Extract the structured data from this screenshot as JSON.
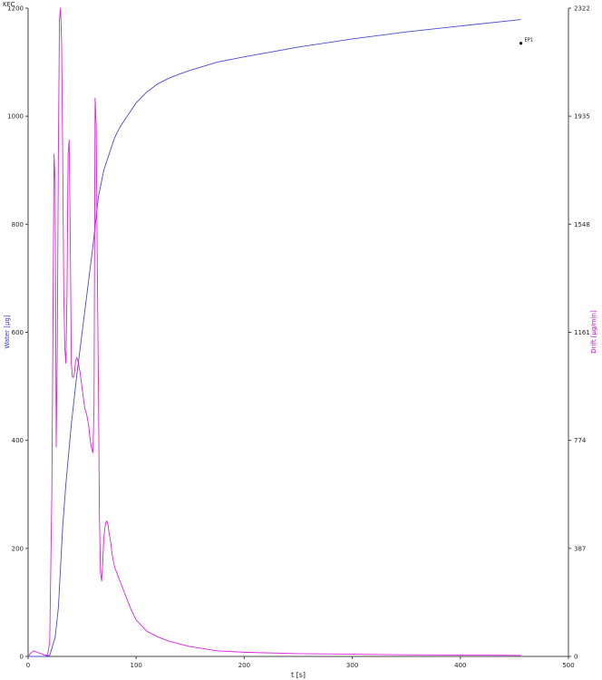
{
  "chart_data": {
    "type": "line",
    "corner_label": "KFC",
    "xlabel": "t [s]",
    "ylabel_left": "Water [µg]",
    "ylabel_right": "Drift [µg/min]",
    "xlim": [
      0,
      500
    ],
    "ylim_left": [
      0,
      1200
    ],
    "ylim_right": [
      0,
      2322
    ],
    "x_ticks": [
      0,
      100,
      200,
      300,
      400,
      500
    ],
    "y_ticks_left": [
      0,
      200,
      400,
      600,
      800,
      1000,
      1200
    ],
    "y_ticks_right": [
      0,
      387,
      774,
      1161,
      1548,
      1935,
      2322
    ],
    "x_tick_labels": [
      "0",
      "100",
      "200",
      "300",
      "400",
      "500"
    ],
    "y_tick_labels_left": [
      "0",
      "200",
      "400",
      "600",
      "800",
      "1000",
      "1200"
    ],
    "y_tick_labels_right": [
      "0",
      "387",
      "774",
      "1161",
      "1548",
      "1935",
      "2322"
    ],
    "grid": false,
    "colors": {
      "water": "#4a4ad8",
      "drift": "#e020e0",
      "marker": "#000000",
      "axis": "#444444"
    },
    "series": [
      {
        "axis": "left",
        "x": [
          0,
          5,
          10,
          15,
          20,
          25,
          28,
          32,
          35,
          40,
          45,
          50,
          55,
          60,
          65,
          70,
          75,
          80,
          85,
          90,
          95,
          100,
          110,
          120,
          130,
          140,
          150,
          175,
          200,
          250,
          300,
          350,
          400,
          456
        ],
        "values": [
          0,
          0,
          0,
          0,
          2,
          35,
          90,
          240,
          320,
          430,
          520,
          600,
          680,
          760,
          850,
          900,
          930,
          960,
          980,
          995,
          1010,
          1025,
          1045,
          1060,
          1070,
          1078,
          1085,
          1100,
          1110,
          1128,
          1143,
          1156,
          1167,
          1179
        ]
      },
      {
        "axis": "right",
        "x": [
          0,
          2,
          5,
          8,
          12,
          15,
          18,
          20,
          22,
          24,
          25,
          26,
          27,
          28,
          29,
          30,
          31,
          32,
          33,
          34,
          35,
          36,
          37,
          38,
          39,
          40,
          41,
          42,
          43,
          44,
          45,
          46,
          47,
          48,
          49,
          50,
          51,
          52,
          53,
          54,
          55,
          56,
          57,
          58,
          59,
          60,
          61,
          62,
          63,
          64,
          65,
          66,
          67,
          68,
          69,
          70,
          71,
          72,
          73,
          74,
          75,
          76,
          78,
          80,
          85,
          90,
          95,
          100,
          110,
          120,
          130,
          140,
          150,
          175,
          200,
          250,
          300,
          350,
          400,
          456
        ],
        "values": [
          0,
          10,
          20,
          15,
          10,
          5,
          5,
          50,
          600,
          1800,
          1700,
          750,
          1100,
          1800,
          2280,
          2322,
          2200,
          1800,
          1300,
          1100,
          1050,
          1300,
          1800,
          1850,
          1500,
          1050,
          1000,
          1000,
          1020,
          1060,
          1070,
          1060,
          1040,
          1020,
          990,
          960,
          930,
          900,
          880,
          870,
          850,
          830,
          790,
          760,
          740,
          730,
          900,
          2000,
          1900,
          1400,
          1000,
          500,
          300,
          270,
          330,
          420,
          460,
          480,
          485,
          470,
          440,
          420,
          360,
          320,
          270,
          220,
          170,
          130,
          90,
          70,
          55,
          45,
          35,
          20,
          15,
          10,
          8,
          6,
          5,
          4
        ]
      }
    ],
    "marker": {
      "x": 456,
      "y_left": 1135,
      "label": "EP1"
    }
  }
}
